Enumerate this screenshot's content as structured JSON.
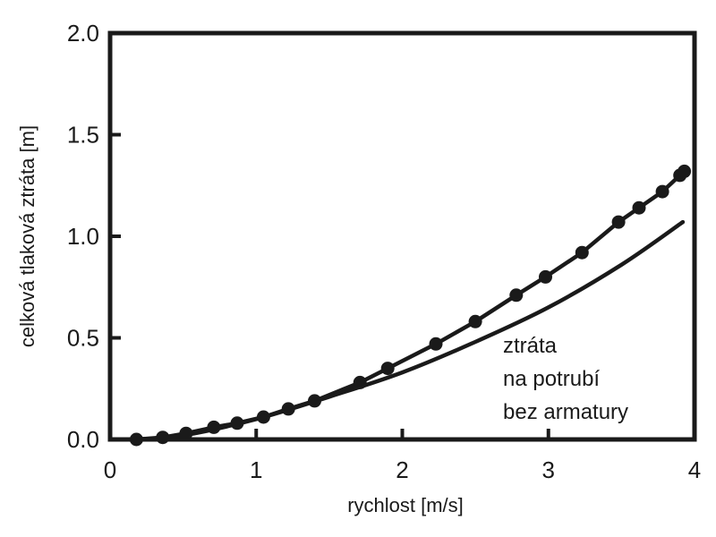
{
  "chart_data": {
    "type": "line",
    "xlabel": "rychlost [m/s]",
    "ylabel": "celková tlaková ztráta [m]",
    "xlim": [
      0,
      4
    ],
    "ylim": [
      0,
      2.0
    ],
    "x_ticks": [
      "0",
      "1",
      "2",
      "3",
      "4"
    ],
    "y_ticks": [
      "0.0",
      "0.5",
      "1.0",
      "1.5",
      "2.0"
    ],
    "grid": false,
    "series": [
      {
        "markers": true,
        "color": "#1a1a1a",
        "x": [
          0.18,
          0.36,
          0.52,
          0.71,
          0.87,
          1.05,
          1.22,
          1.4,
          1.71,
          1.9,
          2.23,
          2.5,
          2.78,
          2.98,
          3.23,
          3.48,
          3.62,
          3.78,
          3.9,
          3.93
        ],
        "y": [
          0.0,
          0.01,
          0.03,
          0.06,
          0.08,
          0.11,
          0.15,
          0.19,
          0.28,
          0.35,
          0.47,
          0.58,
          0.71,
          0.8,
          0.92,
          1.07,
          1.14,
          1.22,
          1.3,
          1.32
        ]
      },
      {
        "markers": false,
        "color": "#1a1a1a",
        "x": [
          0.18,
          0.5,
          1.0,
          1.5,
          2.0,
          2.5,
          3.0,
          3.5,
          3.92
        ],
        "y": [
          0.0,
          0.02,
          0.1,
          0.21,
          0.33,
          0.48,
          0.65,
          0.86,
          1.07
        ]
      }
    ],
    "annotation": [
      "ztráta",
      "na potrubí",
      "bez armatury"
    ]
  }
}
